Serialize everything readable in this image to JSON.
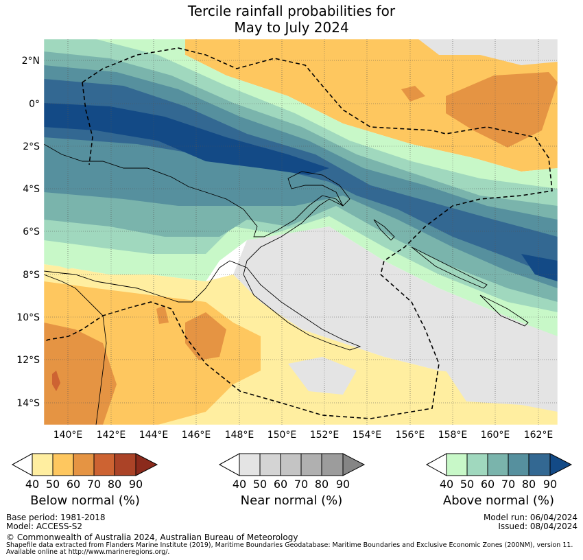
{
  "title": {
    "line1": "Tercile rainfall probabilities for",
    "line2": "May to July 2024"
  },
  "map": {
    "lat_labels": [
      "2°N",
      "0°",
      "2°S",
      "4°S",
      "6°S",
      "8°S",
      "10°S",
      "12°S",
      "14°S"
    ],
    "lon_labels": [
      "140°E",
      "142°E",
      "144°E",
      "146°E",
      "148°E",
      "150°E",
      "152°E",
      "154°E",
      "156°E",
      "158°E",
      "160°E",
      "162°E"
    ]
  },
  "colorbars": [
    {
      "label": "Below normal (%)",
      "ticks": [
        "40",
        "50",
        "60",
        "70",
        "80",
        "90"
      ],
      "colors": [
        "#ffeea0",
        "#fec75f",
        "#e59443",
        "#cd6332",
        "#ab4327",
        "#8b2a1c"
      ]
    },
    {
      "label": "Near normal (%)",
      "ticks": [
        "40",
        "50",
        "60",
        "70",
        "80",
        "90"
      ],
      "colors": [
        "#e4e4e4",
        "#d4d4d4",
        "#c4c4c4",
        "#b0b0b0",
        "#9c9c9c",
        "#858585"
      ]
    },
    {
      "label": "Above normal (%)",
      "ticks": [
        "40",
        "50",
        "60",
        "70",
        "80",
        "90"
      ],
      "colors": [
        "#c8f8c8",
        "#a0d8be",
        "#7ab4ac",
        "#56909e",
        "#336892",
        "#134a86"
      ]
    }
  ],
  "footer": {
    "base_period": "Base period: 1981-2018",
    "model": "Model: ACCESS-S2",
    "model_run": "Model run: 06/04/2024",
    "issued": "Issued: 08/04/2024",
    "copyright": "© Commonwealth of Australia 2024, Australian Bureau of Meteorology",
    "shapefile_line1": "Shapefile data extracted from Flanders Marine Institute (2019), Maritime Boundaries Geodatabase: Maritime Boundaries and Exclusive Economic Zones (200NM), version 11.",
    "shapefile_line2": "Available online at http://www.marineregions.org/."
  }
}
